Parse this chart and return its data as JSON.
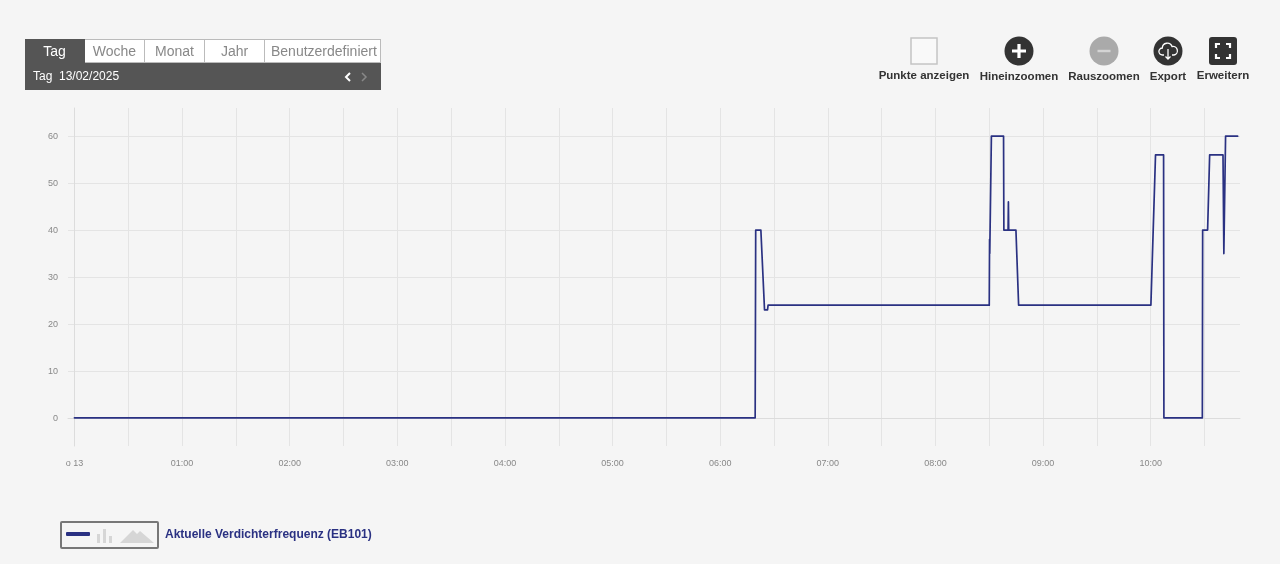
{
  "chart_data": {
    "type": "line",
    "annotations": [
      "Tag",
      "Woche",
      "Monat",
      "Jahr",
      "Benutzerdefiniert",
      "Tag  13/02/2025",
      "Punkte anzeigen",
      "Hineinzoomen",
      "Rauszoomen",
      "Export",
      "Erweitern"
    ],
    "x": [
      0,
      6.325,
      6.33,
      6.378,
      6.412,
      6.44,
      6.445,
      8.5,
      8.503,
      8.505,
      8.52,
      8.633,
      8.636,
      8.675,
      8.678,
      8.681,
      8.748,
      8.773,
      10.002,
      10.045,
      10.12,
      10.123,
      10.48,
      10.483,
      10.529,
      10.548,
      10.672,
      10.68,
      10.696,
      10.808
    ],
    "series": [
      {
        "name": "Aktuelle Verdichterfrequenz (EB101)",
        "color": "#2a3182",
        "values": [
          0,
          0,
          40,
          40,
          23,
          23,
          24,
          24,
          38,
          35,
          60,
          60,
          40,
          40,
          46,
          40,
          40,
          24,
          24,
          56,
          56,
          0,
          0,
          40,
          40,
          56,
          56,
          35,
          60,
          60
        ]
      }
    ],
    "xlim": [
      -0.06,
      10.83
    ],
    "xticks": [
      {
        "value": 0,
        "label": "o 13"
      },
      {
        "value": 0.5,
        "label": null
      },
      {
        "value": 1,
        "label": "01:00"
      },
      {
        "value": 1.5,
        "label": null
      },
      {
        "value": 2,
        "label": "02:00"
      },
      {
        "value": 2.5,
        "label": null
      },
      {
        "value": 3,
        "label": "03:00"
      },
      {
        "value": 3.5,
        "label": null
      },
      {
        "value": 4,
        "label": "04:00"
      },
      {
        "value": 4.5,
        "label": null
      },
      {
        "value": 5,
        "label": "05:00"
      },
      {
        "value": 5.5,
        "label": null
      },
      {
        "value": 6,
        "label": "06:00"
      },
      {
        "value": 6.5,
        "label": null
      },
      {
        "value": 7,
        "label": "07:00"
      },
      {
        "value": 7.5,
        "label": null
      },
      {
        "value": 8,
        "label": "08:00"
      },
      {
        "value": 8.5,
        "label": null
      },
      {
        "value": 9,
        "label": "09:00"
      },
      {
        "value": 9.5,
        "label": null
      },
      {
        "value": 10,
        "label": "10:00"
      },
      {
        "value": 10.5,
        "label": null
      }
    ],
    "ylim": [
      -6,
      66
    ],
    "yticks": [
      0,
      10,
      20,
      30,
      40,
      50,
      60
    ],
    "grid": true,
    "legend": "bottom left",
    "marker": "none",
    "line_style": "solid"
  }
}
